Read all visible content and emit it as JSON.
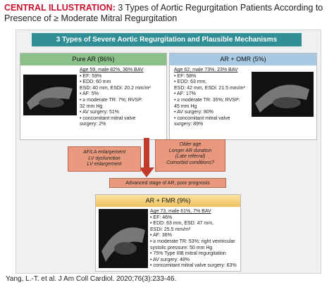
{
  "header": {
    "label": "CENTRAL ILLUSTRATION:",
    "title": "3 Types of Aortic Regurgitation Patients According to Presence of ≥ Moderate Mitral Regurgitation"
  },
  "banner": "3 Types of Severe Aortic Regurgitation and Plausible Mechanisms",
  "panels": [
    {
      "title": "Pure AR (86%)",
      "lines": [
        "Age 59, male 82%, 36% BAV",
        "• EF: 59%",
        "• EDD: 60 mm",
        "ESD: 40 mm, ESDi: 20.2 mm/m²",
        "• AF: 5%",
        "• ≥ moderate TR: 7%; RVSP:",
        "32 mm Hg",
        "• AV surgery: 51%",
        "• concomitant mitral valve",
        "surgery: 2%"
      ]
    },
    {
      "title": "AR + OMR (5%)",
      "lines": [
        "Age 62, male 73%, 23% BAV",
        "• EF: 58%",
        "• EDD: 63 mm,",
        "ESD: 42 mm, ESDi: 21.5 mm/m²",
        "• AF: 17%",
        "• ≥ moderate TR: 35%; RVSP:",
        "45 mm Hg",
        "• AV surgery: 80%",
        "• concomitant mitral valve",
        "surgery: 89%"
      ]
    },
    {
      "title": "AR + FMR (9%)",
      "lines": [
        "Age 73, male 61%, 7% BAV",
        "• EF: 46%",
        "• EDD: 63 mm, ESD: 47 mm,",
        "ESDi: 25.5 mm/m²",
        "• AF: 36%",
        "• ≥ moderate TR: 53%; right ventricular",
        "systolic pressure: 50 mm Hg",
        "• 75% Type IIIB mitral regurgitation",
        "• AV surgery: 48%",
        "• concomitant mitral valve surgery: 63%"
      ]
    }
  ],
  "mechanisms": {
    "left": [
      "AF/LA enlargement",
      "LV dysfunction",
      "LV enlargement"
    ],
    "right": [
      "Older age",
      "Longer AR duration",
      "(Late referral)",
      "Comorbid conditions?"
    ],
    "outcome": "Advanced stage of AR, poor prognosis"
  },
  "citation": "Yang, L.-T. et al. J Am Coll Cardiol. 2020;76(3):233-46."
}
